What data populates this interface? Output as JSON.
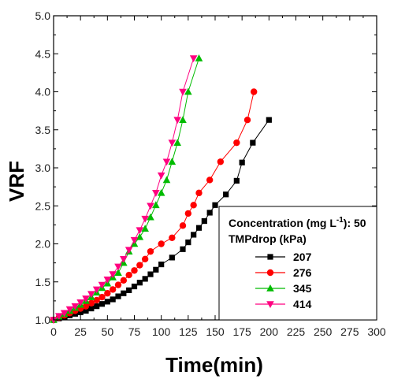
{
  "chart_data": {
    "type": "line",
    "xlabel": "Time(min)",
    "ylabel": "VRF",
    "xlim": [
      0,
      300
    ],
    "ylim": [
      1.0,
      5.0
    ],
    "x_ticks": [
      "0",
      "25",
      "50",
      "75",
      "100",
      "125",
      "150",
      "175",
      "200",
      "225",
      "250",
      "275",
      "300"
    ],
    "y_ticks": [
      "1.0",
      "1.5",
      "2.0",
      "2.5",
      "3.0",
      "3.5",
      "4.0",
      "4.5",
      "5.0"
    ],
    "grid": false,
    "legend": {
      "placement": "bottom-right",
      "title_prefix": "Concentration (mg L",
      "title_sup": "-1",
      "title_suffix": "): 50",
      "subtitle": "TMPdrop (kPa)"
    },
    "series": [
      {
        "name": "207",
        "color": "#000000",
        "marker": "square",
        "points": [
          [
            0,
            1.0
          ],
          [
            5,
            1.02
          ],
          [
            10,
            1.04
          ],
          [
            15,
            1.06
          ],
          [
            20,
            1.08
          ],
          [
            25,
            1.1
          ],
          [
            30,
            1.12
          ],
          [
            35,
            1.15
          ],
          [
            40,
            1.18
          ],
          [
            45,
            1.21
          ],
          [
            50,
            1.24
          ],
          [
            55,
            1.27
          ],
          [
            60,
            1.31
          ],
          [
            65,
            1.35
          ],
          [
            70,
            1.39
          ],
          [
            75,
            1.44
          ],
          [
            80,
            1.49
          ],
          [
            85,
            1.54
          ],
          [
            90,
            1.6
          ],
          [
            95,
            1.66
          ],
          [
            100,
            1.73
          ],
          [
            110,
            1.82
          ],
          [
            120,
            1.93
          ],
          [
            125,
            2.02
          ],
          [
            130,
            2.12
          ],
          [
            135,
            2.21
          ],
          [
            140,
            2.3
          ],
          [
            145,
            2.41
          ],
          [
            150,
            2.51
          ],
          [
            160,
            2.65
          ],
          [
            170,
            2.83
          ],
          [
            175,
            3.07
          ],
          [
            185,
            3.33
          ],
          [
            200,
            3.63
          ]
        ]
      },
      {
        "name": "276",
        "color": "#ff0000",
        "marker": "circle",
        "points": [
          [
            0,
            1.0
          ],
          [
            5,
            1.03
          ],
          [
            10,
            1.06
          ],
          [
            15,
            1.09
          ],
          [
            20,
            1.12
          ],
          [
            25,
            1.15
          ],
          [
            30,
            1.18
          ],
          [
            35,
            1.22
          ],
          [
            40,
            1.26
          ],
          [
            45,
            1.3
          ],
          [
            50,
            1.35
          ],
          [
            55,
            1.4
          ],
          [
            60,
            1.46
          ],
          [
            65,
            1.52
          ],
          [
            70,
            1.59
          ],
          [
            75,
            1.65
          ],
          [
            80,
            1.72
          ],
          [
            85,
            1.8
          ],
          [
            90,
            1.9
          ],
          [
            100,
            2.0
          ],
          [
            110,
            2.08
          ],
          [
            120,
            2.24
          ],
          [
            125,
            2.4
          ],
          [
            130,
            2.51
          ],
          [
            135,
            2.67
          ],
          [
            145,
            2.84
          ],
          [
            155,
            3.08
          ],
          [
            170,
            3.33
          ],
          [
            180,
            3.63
          ],
          [
            186,
            4.0
          ]
        ]
      },
      {
        "name": "345",
        "color": "#00bb00",
        "marker": "triangle-up",
        "points": [
          [
            0,
            1.0
          ],
          [
            5,
            1.04
          ],
          [
            10,
            1.08
          ],
          [
            15,
            1.12
          ],
          [
            20,
            1.16
          ],
          [
            25,
            1.2
          ],
          [
            30,
            1.25
          ],
          [
            35,
            1.3
          ],
          [
            40,
            1.36
          ],
          [
            45,
            1.42
          ],
          [
            50,
            1.48
          ],
          [
            55,
            1.56
          ],
          [
            60,
            1.62
          ],
          [
            65,
            1.75
          ],
          [
            70,
            1.9
          ],
          [
            75,
            2.0
          ],
          [
            80,
            2.09
          ],
          [
            85,
            2.2
          ],
          [
            90,
            2.35
          ],
          [
            95,
            2.51
          ],
          [
            100,
            2.67
          ],
          [
            105,
            2.84
          ],
          [
            110,
            3.08
          ],
          [
            115,
            3.33
          ],
          [
            120,
            3.63
          ],
          [
            125,
            4.0
          ],
          [
            135,
            4.44
          ]
        ]
      },
      {
        "name": "414",
        "color": "#ff0080",
        "marker": "triangle-down",
        "points": [
          [
            0,
            1.0
          ],
          [
            5,
            1.05
          ],
          [
            10,
            1.09
          ],
          [
            15,
            1.14
          ],
          [
            20,
            1.18
          ],
          [
            25,
            1.23
          ],
          [
            30,
            1.28
          ],
          [
            35,
            1.34
          ],
          [
            40,
            1.4
          ],
          [
            45,
            1.46
          ],
          [
            50,
            1.53
          ],
          [
            55,
            1.6
          ],
          [
            60,
            1.7
          ],
          [
            65,
            1.8
          ],
          [
            70,
            1.92
          ],
          [
            75,
            2.05
          ],
          [
            80,
            2.18
          ],
          [
            85,
            2.33
          ],
          [
            90,
            2.5
          ],
          [
            95,
            2.67
          ],
          [
            100,
            2.9
          ],
          [
            105,
            3.08
          ],
          [
            110,
            3.33
          ],
          [
            115,
            3.63
          ],
          [
            120,
            4.0
          ],
          [
            130,
            4.44
          ]
        ]
      }
    ]
  }
}
